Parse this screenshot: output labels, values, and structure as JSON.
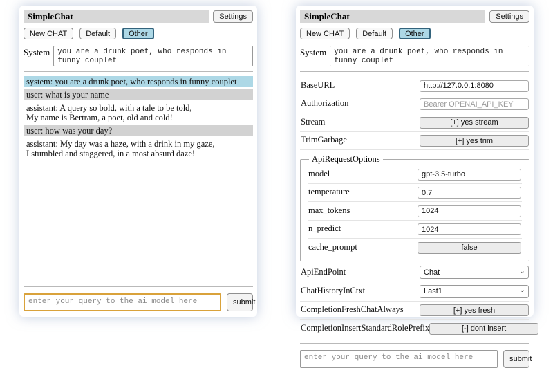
{
  "colors": {
    "accent": "#add8e6",
    "accent_border": "#33637c",
    "titlebar": "#d8d8d8",
    "user_msg": "#d2d2d2",
    "focus": "#d9a23b"
  },
  "app": {
    "title": "SimpleChat",
    "settings_button": "Settings",
    "tabs": [
      {
        "label": "New CHAT",
        "active": false
      },
      {
        "label": "Default",
        "active": false
      },
      {
        "label": "Other",
        "active": true
      }
    ],
    "system_label": "System",
    "system_prompt": "you are a drunk poet, who responds in funny couplet",
    "query_placeholder": "enter your query to the ai model here",
    "submit_label": "submit"
  },
  "chat": {
    "messages": [
      {
        "role": "system",
        "text": "system: you are a drunk poet, who responds in funny couplet"
      },
      {
        "role": "user",
        "text": "user: what is your name"
      },
      {
        "role": "assistant",
        "text": "assistant: A query so bold, with a tale to be told,\nMy name is Bertram, a poet, old and cold!"
      },
      {
        "role": "user",
        "text": "user: how was your day?"
      },
      {
        "role": "assistant",
        "text": "assistant: My day was a haze, with a drink in my gaze,\nI stumbled and staggered, in a most absurd daze!"
      }
    ]
  },
  "settings": {
    "base_url": {
      "label": "BaseURL",
      "value": "http://127.0.0.1:8080"
    },
    "authorization": {
      "label": "Authorization",
      "placeholder": "Bearer OPENAI_API_KEY"
    },
    "stream": {
      "label": "Stream",
      "button": "[+] yes stream"
    },
    "trim_garbage": {
      "label": "TrimGarbage",
      "button": "[+] yes trim"
    },
    "api_request_options": {
      "legend": "ApiRequestOptions",
      "model": {
        "label": "model",
        "value": "gpt-3.5-turbo"
      },
      "temperature": {
        "label": "temperature",
        "value": "0.7"
      },
      "max_tokens": {
        "label": "max_tokens",
        "value": "1024"
      },
      "n_predict": {
        "label": "n_predict",
        "value": "1024"
      },
      "cache_prompt": {
        "label": "cache_prompt",
        "button": "false"
      }
    },
    "api_endpoint": {
      "label": "ApiEndPoint",
      "selected": "Chat"
    },
    "chat_history_in_ctxt": {
      "label": "ChatHistoryInCtxt",
      "selected": "Last1"
    },
    "completion_fresh_chat_always": {
      "label": "CompletionFreshChatAlways",
      "button": "[+] yes fresh"
    },
    "completion_insert_standard_role_prefix": {
      "label": "CompletionInsertStandardRolePrefix",
      "button": "[-] dont insert"
    }
  }
}
